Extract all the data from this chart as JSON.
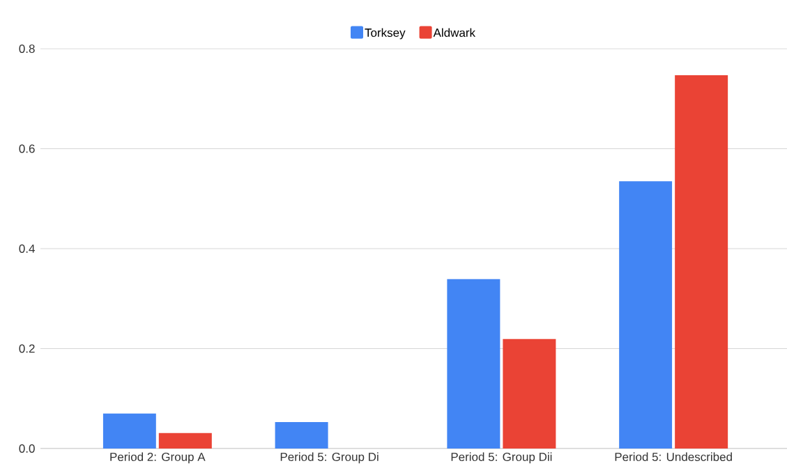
{
  "chart_data": {
    "type": "bar",
    "categories": [
      "Period 2: Group A",
      "Period 5: Group Di",
      "Period 5: Group Dii",
      "Period 5: Undescribed"
    ],
    "series": [
      {
        "name": "Torksey",
        "color": "#4285f4",
        "values": [
          0.07,
          0.053,
          0.339,
          0.535
        ]
      },
      {
        "name": "Aldwark",
        "color": "#ea4335",
        "values": [
          0.031,
          0,
          0.219,
          0.747
        ]
      }
    ],
    "ylim": [
      0,
      0.8
    ],
    "yticks": [
      {
        "value": 0,
        "label": "0.0"
      },
      {
        "value": 0.2,
        "label": "0.2"
      },
      {
        "value": 0.4,
        "label": "0.4"
      },
      {
        "value": 0.6,
        "label": "0.6"
      },
      {
        "value": 0.8,
        "label": "0.8"
      }
    ],
    "grid": "y",
    "legend": "top"
  }
}
